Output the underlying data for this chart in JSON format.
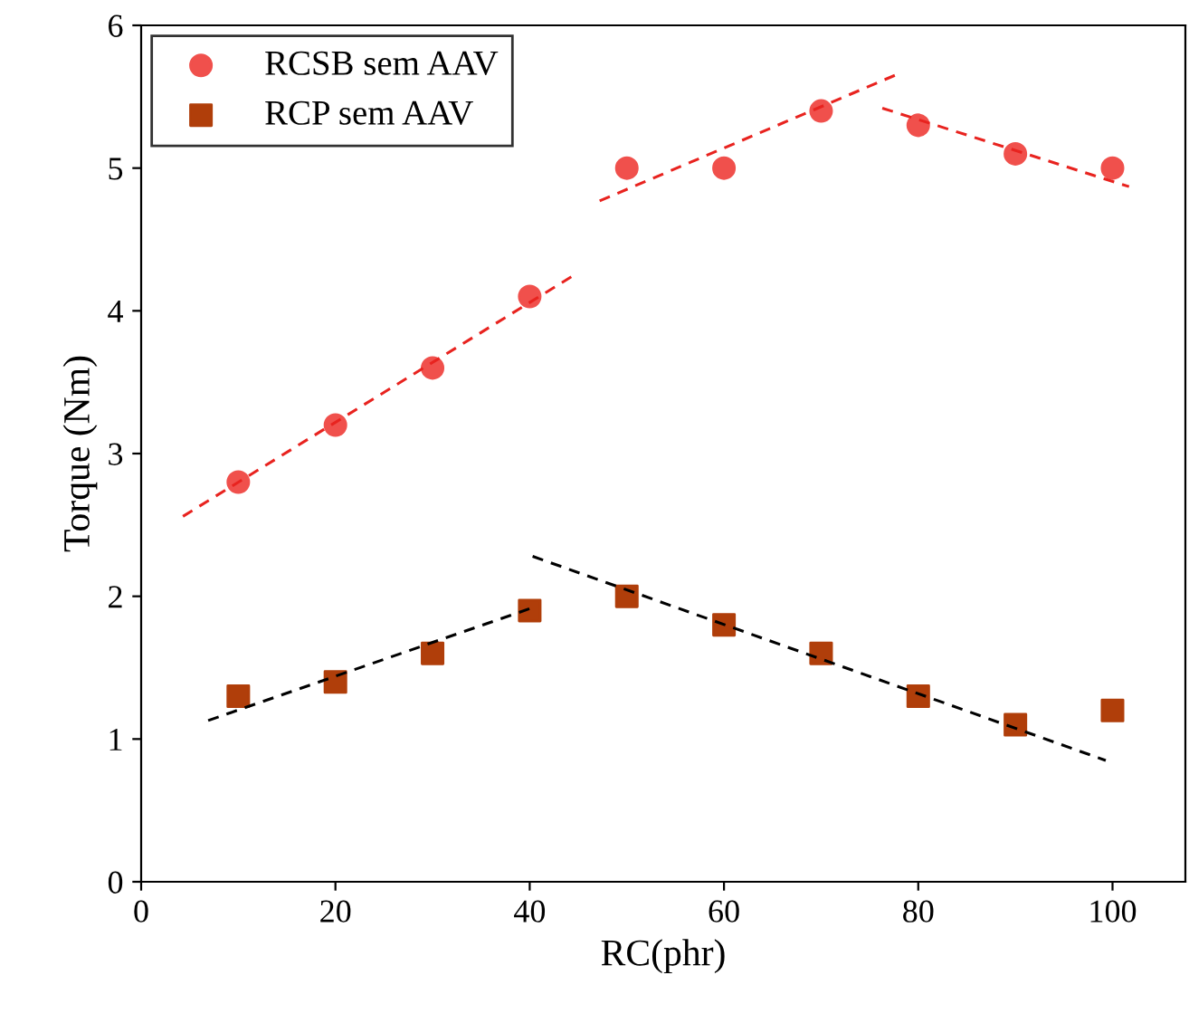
{
  "chart_data": {
    "type": "scatter",
    "xlabel": "RC(phr)",
    "ylabel": "Torque (Nm)",
    "xlim": [
      0,
      107.5
    ],
    "ylim": [
      0,
      6
    ],
    "xticks": [
      0,
      20,
      40,
      60,
      80,
      100
    ],
    "yticks": [
      0,
      1,
      2,
      3,
      4,
      5,
      6
    ],
    "grid": false,
    "legend": "top left",
    "series": [
      {
        "name": "RCSB sem AAV",
        "color": "#f0504c",
        "marker": "circle",
        "x": [
          10,
          20,
          30,
          40,
          50,
          60,
          70,
          80,
          90,
          100
        ],
        "values": [
          2.8,
          3.2,
          3.6,
          4.1,
          5.0,
          5.0,
          5.4,
          5.3,
          5.1,
          5.0
        ]
      },
      {
        "name": "RCP sem AAV",
        "color": "#b03e0a",
        "marker": "square",
        "x": [
          10,
          20,
          30,
          40,
          50,
          60,
          70,
          80,
          90,
          100
        ],
        "values": [
          1.3,
          1.4,
          1.6,
          1.9,
          2.0,
          1.8,
          1.6,
          1.3,
          1.1,
          1.2
        ]
      },
      {
        "type": "line",
        "color": "#e8231f",
        "line_style": "dashed",
        "marker": "none",
        "x": [
          4.3,
          44.8
        ],
        "values": [
          2.56,
          4.26
        ]
      },
      {
        "type": "line",
        "color": "#e8231f",
        "line_style": "dashed",
        "marker": "none",
        "x": [
          47.2,
          77.6
        ],
        "values": [
          4.77,
          5.65
        ]
      },
      {
        "type": "line",
        "color": "#e8231f",
        "line_style": "dashed",
        "marker": "none",
        "x": [
          76.3,
          101.7
        ],
        "values": [
          5.42,
          4.87
        ]
      },
      {
        "type": "line",
        "color": "#000000",
        "line_style": "dashed",
        "marker": "none",
        "x": [
          6.9,
          40.7
        ],
        "values": [
          1.13,
          1.93
        ]
      },
      {
        "type": "line",
        "color": "#000000",
        "line_style": "dashed",
        "marker": "none",
        "x": [
          40.3,
          99.3
        ],
        "values": [
          2.28,
          0.85
        ]
      }
    ]
  }
}
